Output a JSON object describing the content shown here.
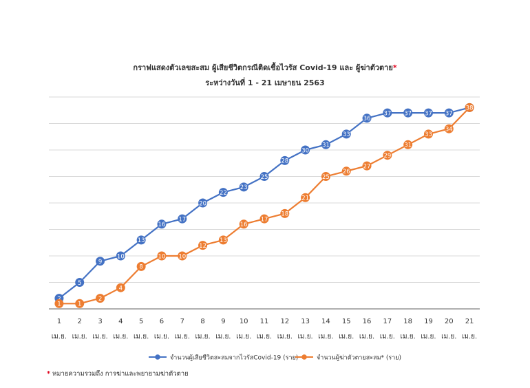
{
  "chart_data": {
    "type": "line",
    "title": "กราฟแสดงตัวเลขสะสม ผู้เสียชีวิตกรณีติดเชื้อไวรัส Covid-19 และ ผู้ฆ่าตัวตาย",
    "title_star": "*",
    "subtitle": "ระหว่างวันที่ 1 - 21 เมษายน 2563",
    "x": [
      "1",
      "2",
      "3",
      "4",
      "5",
      "6",
      "7",
      "8",
      "9",
      "10",
      "11",
      "12",
      "13",
      "14",
      "15",
      "16",
      "17",
      "18",
      "19",
      "20",
      "21"
    ],
    "x_sublabel": "เม.ย.",
    "ylim": [
      0,
      40
    ],
    "grid": true,
    "legend_position": "bottom",
    "series": [
      {
        "name": "จำนวนผู้เสียชีวิตสะสมจากไวรัสCovid-19 (ราย)",
        "color": "#4472c4",
        "values": [
          2,
          5,
          9,
          10,
          13,
          16,
          17,
          20,
          22,
          23,
          25,
          28,
          30,
          31,
          33,
          36,
          37,
          37,
          37,
          37,
          38
        ],
        "labels": [
          "2",
          "5",
          "9",
          "10",
          "13",
          "16",
          "17",
          "20",
          "22",
          "23",
          "25",
          "28",
          "30",
          "31",
          "33",
          "36",
          "37",
          "37",
          "37",
          "37",
          ""
        ]
      },
      {
        "name": "จำนวนผู้ฆ่าตัวตายสะสม* (ราย)",
        "color": "#ed7d31",
        "values": [
          1,
          1,
          2,
          4,
          8,
          10,
          10,
          12,
          13,
          16,
          17,
          18,
          21,
          25,
          26,
          27,
          29,
          31,
          33,
          34,
          38
        ],
        "labels": [
          "1",
          "1",
          "2",
          "4",
          "8",
          "10",
          "10",
          "12",
          "13",
          "16",
          "17",
          "18",
          "21",
          "25",
          "26",
          "27",
          "29",
          "31",
          "33",
          "34",
          "38"
        ]
      }
    ]
  },
  "footnote": {
    "star": "*",
    "text": " หมายความรวมถึง การฆ่าและพยายามฆ่าตัวตาย"
  }
}
